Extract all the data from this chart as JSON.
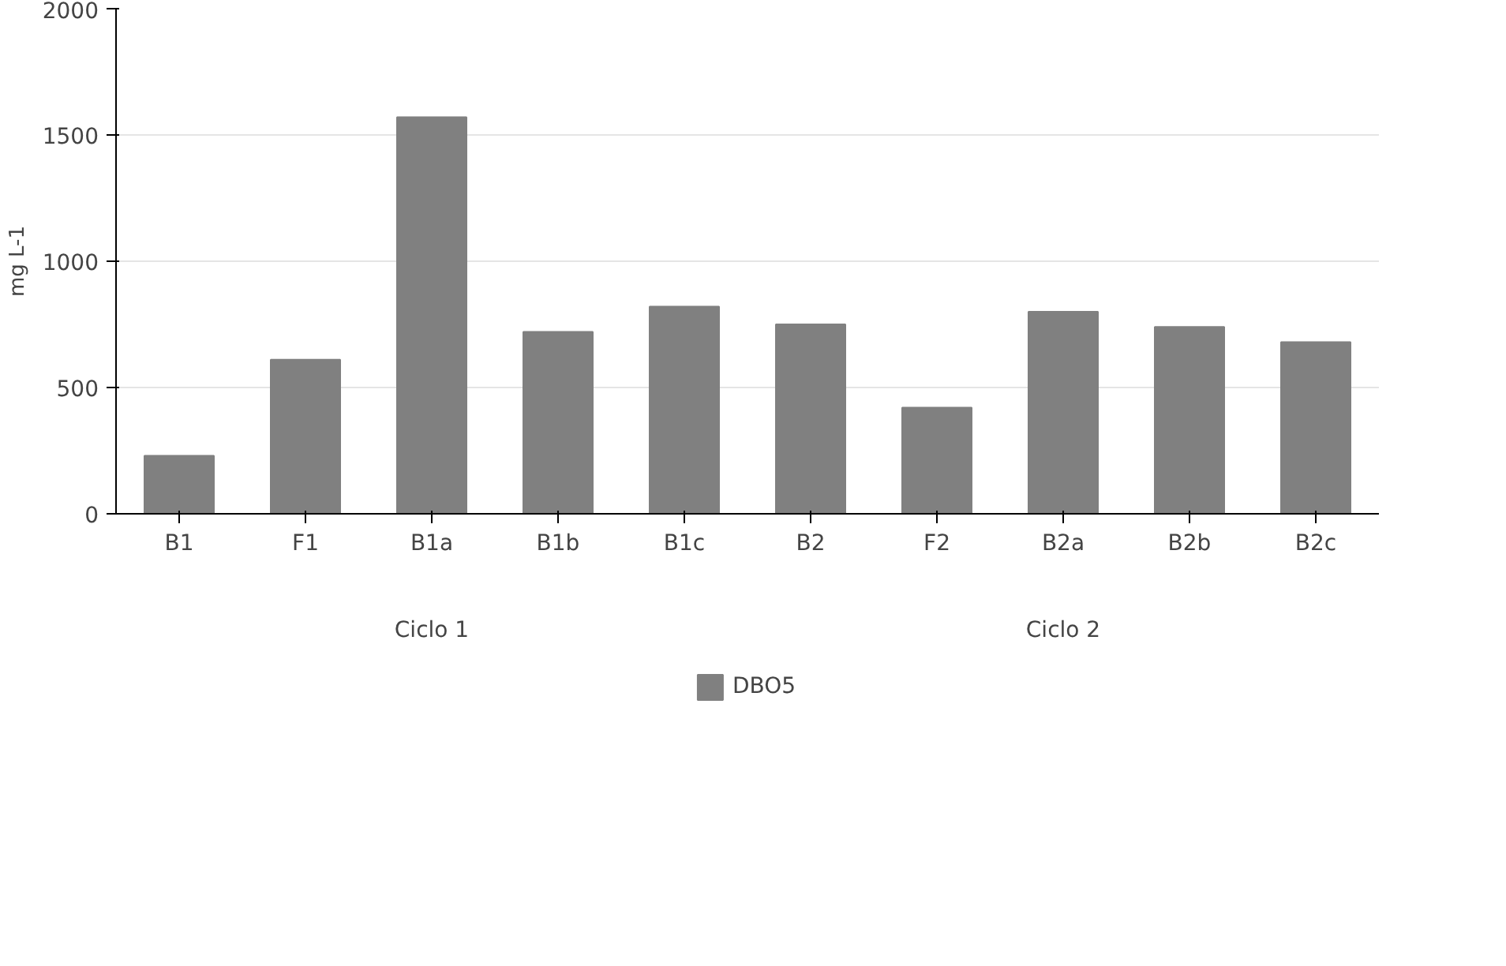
{
  "chart_data": {
    "type": "bar",
    "ylabel": "mg L-1",
    "categories": [
      "B1",
      "F1",
      "B1a",
      "B1b",
      "B1c",
      "B2",
      "F2",
      "B2a",
      "B2b",
      "B2c"
    ],
    "series": [
      {
        "name": "DBO5",
        "color": "#808080",
        "values": [
          230,
          610,
          1570,
          720,
          820,
          750,
          420,
          800,
          740,
          680
        ]
      }
    ],
    "ylim": [
      0,
      2000
    ],
    "yticks": [
      0,
      500,
      1000,
      1500,
      2000
    ],
    "grid": "y",
    "legend": "bottom",
    "annotations": [
      "Ciclo 1",
      "Ciclo 2"
    ]
  }
}
